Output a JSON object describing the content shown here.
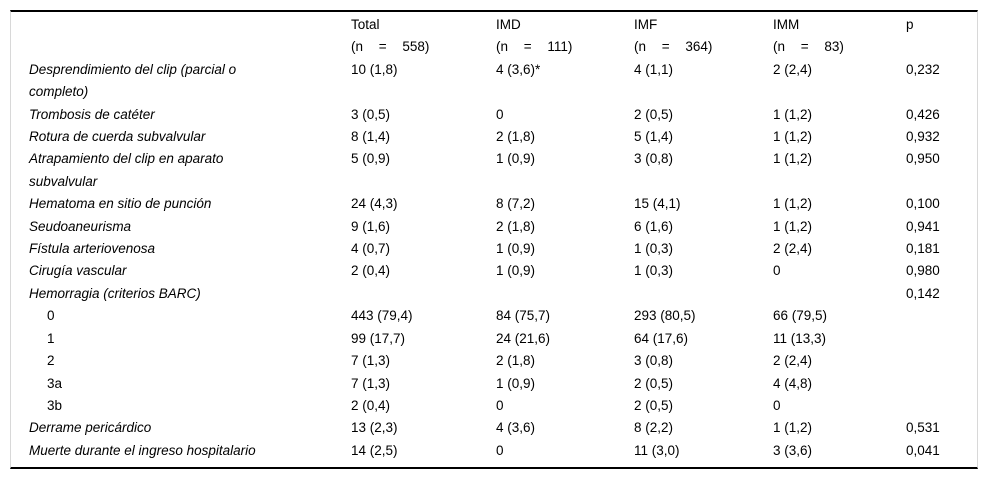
{
  "table": {
    "columns": [
      {
        "label": "Total",
        "n_line": "(n = 558)"
      },
      {
        "label": "IMD",
        "n_line": "(n = 111)"
      },
      {
        "label": "IMF",
        "n_line": "(n = 364)"
      },
      {
        "label": "IMM",
        "n_line": "(n = 83)"
      },
      {
        "label": "p",
        "n_line": ""
      }
    ],
    "rows": [
      {
        "label": "Desprendimiento del clip (parcial o completo)",
        "style": "category",
        "cells": [
          "10 (1,8)",
          "4 (3,6)*",
          "4 (1,1)",
          "2 (2,4)",
          "0,232"
        ]
      },
      {
        "label": "Trombosis de catéter",
        "style": "category",
        "cells": [
          "3 (0,5)",
          "0",
          "2 (0,5)",
          "1 (1,2)",
          "0,426"
        ]
      },
      {
        "label": "Rotura de cuerda subvalvular",
        "style": "category",
        "cells": [
          "8 (1,4)",
          "2 (1,8)",
          "5 (1,4)",
          "1 (1,2)",
          "0,932"
        ]
      },
      {
        "label": "Atrapamiento del clip en aparato subvalvular",
        "style": "category",
        "cells": [
          "5 (0,9)",
          "1 (0,9)",
          "3 (0,8)",
          "1 (1,2)",
          "0,950"
        ]
      },
      {
        "label": "Hematoma en sitio de punción",
        "style": "category",
        "cells": [
          "24 (4,3)",
          "8 (7,2)",
          "15 (4,1)",
          "1 (1,2)",
          "0,100"
        ]
      },
      {
        "label": "Seudoaneurisma",
        "style": "category",
        "cells": [
          "9 (1,6)",
          "2 (1,8)",
          "6 (1,6)",
          "1 (1,2)",
          "0,941"
        ]
      },
      {
        "label": "Fístula arteriovenosa",
        "style": "category",
        "cells": [
          "4 (0,7)",
          "1 (0,9)",
          "1 (0,3)",
          "2 (2,4)",
          "0,181"
        ]
      },
      {
        "label": "Cirugía vascular",
        "style": "category",
        "cells": [
          "2 (0,4)",
          "1 (0,9)",
          "1 (0,3)",
          "0",
          "0,980"
        ]
      },
      {
        "label": "Hemorragia (criterios BARC)",
        "style": "category",
        "cells": [
          "",
          "",
          "",
          "",
          "0,142"
        ]
      },
      {
        "label": "0",
        "style": "subitem",
        "cells": [
          "443 (79,4)",
          "84 (75,7)",
          "293 (80,5)",
          "66 (79,5)",
          ""
        ]
      },
      {
        "label": "1",
        "style": "subitem",
        "cells": [
          "99 (17,7)",
          "24 (21,6)",
          "64 (17,6)",
          "11 (13,3)",
          ""
        ]
      },
      {
        "label": "2",
        "style": "subitem",
        "cells": [
          "7 (1,3)",
          "2 (1,8)",
          "3 (0,8)",
          "2 (2,4)",
          ""
        ]
      },
      {
        "label": "3a",
        "style": "subitem",
        "cells": [
          "7 (1,3)",
          "1 (0,9)",
          "2 (0,5)",
          "4 (4,8)",
          ""
        ]
      },
      {
        "label": "3b",
        "style": "subitem",
        "cells": [
          "2 (0,4)",
          "0",
          "2 (0,5)",
          "0",
          ""
        ]
      },
      {
        "label": "Derrame pericárdico",
        "style": "category",
        "cells": [
          "13 (2,3)",
          "4 (3,6)",
          "8 (2,2)",
          "1 (1,2)",
          "0,531"
        ]
      },
      {
        "label": "Muerte durante el ingreso hospitalario",
        "style": "category",
        "cells": [
          "14 (2,5)",
          "0",
          "11 (3,0)",
          "3 (3,6)",
          "0,041"
        ]
      }
    ]
  },
  "colors": {
    "text": "#000000",
    "rule": "#000000",
    "frame": "#d8d8d8",
    "background": "#ffffff"
  }
}
